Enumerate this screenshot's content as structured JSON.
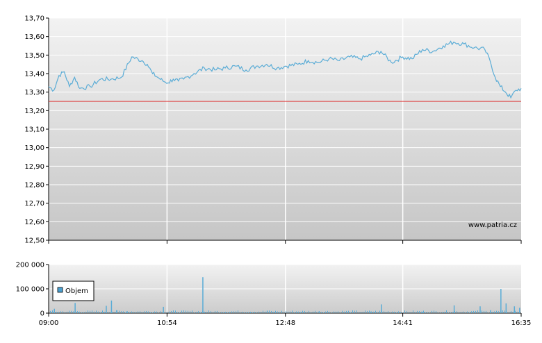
{
  "chart_data": [
    {
      "type": "line",
      "title": "",
      "xlabel": "",
      "ylabel": "",
      "ylim": [
        12.5,
        13.7
      ],
      "y_ticks": [
        "12,50",
        "12,60",
        "12,70",
        "12,80",
        "12,90",
        "13,00",
        "13,10",
        "13,20",
        "13,30",
        "13,40",
        "13,50",
        "13,60",
        "13,70"
      ],
      "x_ticks": [
        "09:00",
        "10:54",
        "12:48",
        "14:41",
        "16:35"
      ],
      "grid": true,
      "reference_line": {
        "value": 13.25,
        "color": "#dd2222"
      },
      "watermark": "www.patria.cz",
      "colors": {
        "line": "#5aacd6",
        "grid": "#ffffff",
        "plot_bg_top": "#f0f0f0",
        "plot_bg_bottom": "#c8c8c8"
      },
      "series": [
        {
          "name": "",
          "x": [
            "09:00",
            "09:05",
            "09:10",
            "09:15",
            "09:20",
            "09:25",
            "09:30",
            "09:40",
            "09:50",
            "10:00",
            "10:10",
            "10:20",
            "10:30",
            "10:35",
            "10:40",
            "10:45",
            "10:50",
            "10:55",
            "11:00",
            "11:05",
            "11:10",
            "11:20",
            "11:30",
            "11:40",
            "11:50",
            "12:00",
            "12:10",
            "12:20",
            "12:30",
            "12:40",
            "12:48",
            "13:00",
            "13:10",
            "13:20",
            "13:30",
            "13:40",
            "13:50",
            "14:00",
            "14:10",
            "14:20",
            "14:30",
            "14:41",
            "14:50",
            "15:00",
            "15:10",
            "15:20",
            "15:30",
            "15:40",
            "15:50",
            "16:00",
            "16:05",
            "16:10",
            "16:15",
            "16:20",
            "16:25",
            "16:30",
            "16:35"
          ],
          "values": [
            13.33,
            13.31,
            13.39,
            13.41,
            13.33,
            13.38,
            13.32,
            13.33,
            13.37,
            13.37,
            13.38,
            13.49,
            13.47,
            13.45,
            13.4,
            13.38,
            13.36,
            13.35,
            13.37,
            13.36,
            13.37,
            13.4,
            13.43,
            13.42,
            13.43,
            13.44,
            13.42,
            13.44,
            13.45,
            13.43,
            13.44,
            13.45,
            13.47,
            13.46,
            13.48,
            13.47,
            13.49,
            13.48,
            13.5,
            13.52,
            13.46,
            13.49,
            13.48,
            13.53,
            13.52,
            13.55,
            13.57,
            13.56,
            13.54,
            13.53,
            13.47,
            13.38,
            13.33,
            13.3,
            13.27,
            13.31,
            13.32
          ]
        }
      ]
    },
    {
      "type": "bar",
      "title": "",
      "xlabel": "",
      "ylabel": "",
      "ylim": [
        0,
        200000
      ],
      "y_ticks": [
        "0",
        "100 000",
        "200 000"
      ],
      "x_ticks": [
        "09:00",
        "10:54",
        "12:48",
        "14:41",
        "16:35"
      ],
      "grid": true,
      "legend": {
        "placement": "left",
        "label": "Objem"
      },
      "colors": {
        "bar": "#5aacd6",
        "legend_swatch": "#4aa0d0"
      },
      "series": [
        {
          "name": "Objem",
          "x": [
            "09:05",
            "09:25",
            "09:55",
            "10:00",
            "10:05",
            "10:15",
            "10:50",
            "11:28",
            "12:30",
            "13:20",
            "14:10",
            "14:20",
            "15:00",
            "15:30",
            "15:55",
            "16:05",
            "16:15",
            "16:20",
            "16:28",
            "16:33"
          ],
          "values": [
            18000,
            42000,
            30000,
            52000,
            12000,
            8000,
            26000,
            148000,
            10000,
            8000,
            7000,
            36000,
            6000,
            32000,
            28000,
            12000,
            100000,
            40000,
            28000,
            22000
          ]
        }
      ]
    }
  ]
}
